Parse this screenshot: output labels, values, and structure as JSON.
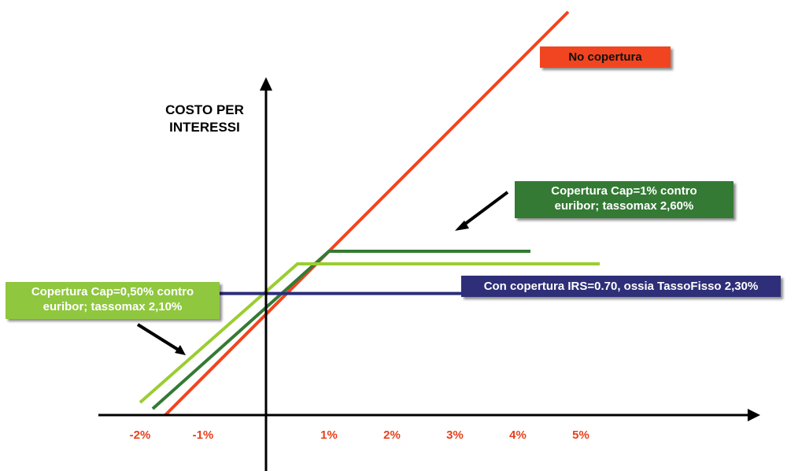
{
  "chart_data": {
    "type": "line",
    "title": "",
    "xlabel": "",
    "ylabel": "COSTO PER INTERESSI",
    "ylabel_lines": [
      "COSTO PER",
      "INTERESSI"
    ],
    "x_tick_labels": [
      {
        "label": "-2%",
        "value": -2
      },
      {
        "label": "-1%",
        "value": -1
      },
      {
        "label": "1%",
        "value": 1
      },
      {
        "label": "2%",
        "value": 2
      },
      {
        "label": "3%",
        "value": 3
      },
      {
        "label": "4%",
        "value": 4
      },
      {
        "label": "5%",
        "value": 5
      }
    ],
    "xlim": [
      -2.6,
      7.8
    ],
    "ylim": [
      -0.3,
      6.2
    ],
    "grid": false,
    "legend": "annotation boxes",
    "series": [
      {
        "name": "No copertura",
        "color": "#f04520",
        "points": [
          [
            -1.6,
            0
          ],
          [
            4.8,
            6.4
          ]
        ]
      },
      {
        "name": "Copertura Cap=1% contro euribor; tassomax 2,60%",
        "color": "#347a34",
        "points": [
          [
            -1.8,
            0.1
          ],
          [
            1.0,
            2.6
          ],
          [
            4.2,
            2.6
          ]
        ]
      },
      {
        "name": "Copertura Cap=0,50% contro euribor; tassomax 2,10%",
        "color": "#9acd32",
        "points": [
          [
            -2.0,
            0.2
          ],
          [
            0.5,
            2.4
          ],
          [
            5.3,
            2.4
          ]
        ]
      },
      {
        "name": "Con copertura IRS=0.70, ossia TassoFisso 2,30%",
        "color": "#2b2d7a",
        "points": [
          [
            -2.3,
            1.93
          ],
          [
            6.4,
            1.93
          ]
        ]
      }
    ]
  },
  "labels": {
    "no_copertura": "No copertura",
    "cap1_line1": "Copertura Cap=1%  contro",
    "cap1_line2": "euribor;  tassomax 2,60%",
    "cap05_line1": "Copertura Cap=0,50%  contro",
    "cap05_line2": "euribor;  tassomax 2,10%",
    "irs": "Con copertura IRS=0.70, ossia TassoFisso 2,30%"
  }
}
